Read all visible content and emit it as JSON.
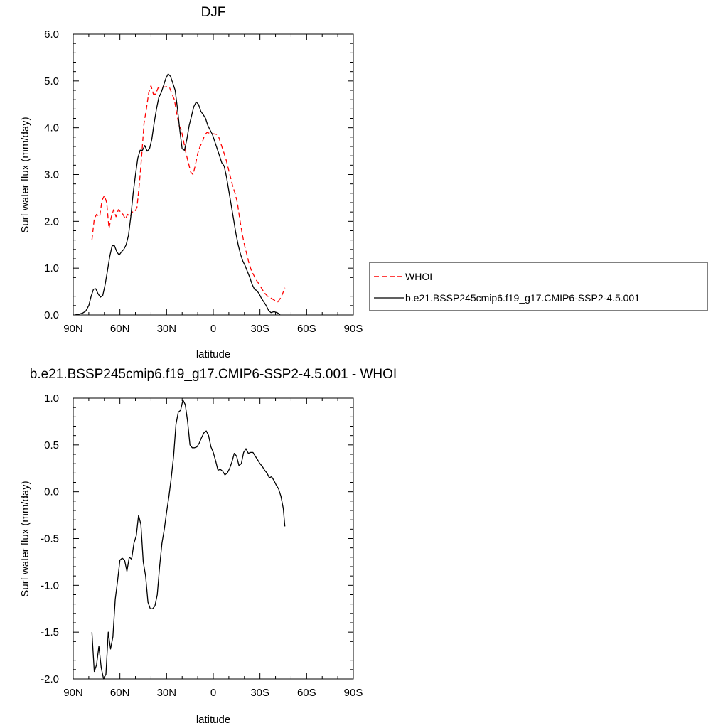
{
  "chart_data": [
    {
      "type": "line",
      "title": "DJF",
      "xlabel": "latitude",
      "ylabel": "Surf water flux (mm/day)",
      "xlim": [
        90,
        -90
      ],
      "ylim": [
        0,
        6
      ],
      "xticks": [
        {
          "v": 90,
          "label": "90N"
        },
        {
          "v": 60,
          "label": "60N"
        },
        {
          "v": 30,
          "label": "30N"
        },
        {
          "v": 0,
          "label": "0"
        },
        {
          "v": -30,
          "label": "30S"
        },
        {
          "v": -60,
          "label": "60S"
        },
        {
          "v": -90,
          "label": "90S"
        }
      ],
      "yticks": [
        {
          "v": 0,
          "label": "0.0"
        },
        {
          "v": 1,
          "label": "1.0"
        },
        {
          "v": 2,
          "label": "2.0"
        },
        {
          "v": 3,
          "label": "3.0"
        },
        {
          "v": 4,
          "label": "4.0"
        },
        {
          "v": 5,
          "label": "5.0"
        },
        {
          "v": 6,
          "label": "6.0"
        }
      ],
      "legend_position": "right",
      "series": [
        {
          "name": "WHOI",
          "color": "#ff0000",
          "dash": true,
          "points": [
            [
              78,
              1.6
            ],
            [
              76.5,
              2.05
            ],
            [
              75,
              2.15
            ],
            [
              73,
              2.1
            ],
            [
              71.5,
              2.45
            ],
            [
              70,
              2.55
            ],
            [
              68.5,
              2.4
            ],
            [
              67,
              1.85
            ],
            [
              65.5,
              2.1
            ],
            [
              64,
              2.25
            ],
            [
              62.5,
              2.1
            ],
            [
              61,
              2.25
            ],
            [
              59.5,
              2.2
            ],
            [
              58,
              2.15
            ],
            [
              56.5,
              2.05
            ],
            [
              55,
              2.15
            ],
            [
              53.5,
              2.1
            ],
            [
              52,
              2.2
            ],
            [
              50.5,
              2.2
            ],
            [
              49,
              2.3
            ],
            [
              47.5,
              2.8
            ],
            [
              46,
              3.4
            ],
            [
              44.5,
              4.1
            ],
            [
              43,
              4.4
            ],
            [
              41.5,
              4.75
            ],
            [
              40,
              4.9
            ],
            [
              38.5,
              4.72
            ],
            [
              37,
              4.72
            ],
            [
              35.5,
              4.85
            ],
            [
              34,
              4.85
            ],
            [
              32.5,
              4.87
            ],
            [
              31,
              4.87
            ],
            [
              29.5,
              4.88
            ],
            [
              28,
              4.85
            ],
            [
              26.5,
              4.72
            ],
            [
              25,
              4.6
            ],
            [
              23.5,
              4.3
            ],
            [
              22,
              4.05
            ],
            [
              20.5,
              3.95
            ],
            [
              19,
              3.7
            ],
            [
              17.5,
              3.45
            ],
            [
              16,
              3.25
            ],
            [
              14.5,
              3.05
            ],
            [
              13,
              3.0
            ],
            [
              11.5,
              3.2
            ],
            [
              10,
              3.45
            ],
            [
              8.5,
              3.6
            ],
            [
              7,
              3.7
            ],
            [
              5.5,
              3.85
            ],
            [
              4,
              3.9
            ],
            [
              2,
              3.88
            ],
            [
              0,
              3.87
            ],
            [
              -2,
              3.86
            ],
            [
              -3.5,
              3.8
            ],
            [
              -5,
              3.65
            ],
            [
              -6.5,
              3.5
            ],
            [
              -8,
              3.35
            ],
            [
              -9.5,
              3.15
            ],
            [
              -11,
              2.95
            ],
            [
              -12.5,
              2.75
            ],
            [
              -14,
              2.6
            ],
            [
              -15.5,
              2.4
            ],
            [
              -17,
              2.05
            ],
            [
              -18.5,
              1.75
            ],
            [
              -20,
              1.5
            ],
            [
              -21.5,
              1.3
            ],
            [
              -23,
              1.1
            ],
            [
              -24.5,
              0.95
            ],
            [
              -26,
              0.85
            ],
            [
              -27.5,
              0.75
            ],
            [
              -29,
              0.68
            ],
            [
              -30.5,
              0.6
            ],
            [
              -32,
              0.52
            ],
            [
              -33.5,
              0.45
            ],
            [
              -35,
              0.4
            ],
            [
              -36.5,
              0.37
            ],
            [
              -38,
              0.34
            ],
            [
              -40,
              0.3
            ],
            [
              -41.5,
              0.28
            ],
            [
              -43,
              0.35
            ],
            [
              -44.5,
              0.45
            ],
            [
              -46,
              0.58
            ]
          ]
        },
        {
          "name": "b.e21.BSSP245cmip6.f19_g17.CMIP6-SSP2-4.5.001",
          "color": "#000000",
          "dash": false,
          "points": [
            [
              88.5,
              0.01
            ],
            [
              86,
              0.02
            ],
            [
              84,
              0.04
            ],
            [
              82,
              0.08
            ],
            [
              80,
              0.2
            ],
            [
              78.5,
              0.4
            ],
            [
              77,
              0.55
            ],
            [
              75.5,
              0.56
            ],
            [
              74,
              0.45
            ],
            [
              72.5,
              0.38
            ],
            [
              71,
              0.42
            ],
            [
              69.5,
              0.65
            ],
            [
              68,
              0.95
            ],
            [
              66.5,
              1.25
            ],
            [
              65,
              1.48
            ],
            [
              63.5,
              1.48
            ],
            [
              62,
              1.35
            ],
            [
              60.5,
              1.28
            ],
            [
              59,
              1.35
            ],
            [
              57.5,
              1.4
            ],
            [
              56,
              1.5
            ],
            [
              54.5,
              1.7
            ],
            [
              53,
              2.1
            ],
            [
              51.5,
              2.6
            ],
            [
              50,
              3.0
            ],
            [
              48.5,
              3.35
            ],
            [
              47,
              3.52
            ],
            [
              45.5,
              3.52
            ],
            [
              44,
              3.62
            ],
            [
              42.5,
              3.5
            ],
            [
              41,
              3.55
            ],
            [
              39.5,
              3.75
            ],
            [
              38,
              4.1
            ],
            [
              36.5,
              4.4
            ],
            [
              35,
              4.65
            ],
            [
              33.5,
              4.75
            ],
            [
              32,
              4.9
            ],
            [
              30.5,
              5.05
            ],
            [
              29,
              5.15
            ],
            [
              27.5,
              5.1
            ],
            [
              26,
              4.95
            ],
            [
              24.5,
              4.8
            ],
            [
              23,
              4.4
            ],
            [
              21.5,
              3.95
            ],
            [
              20,
              3.55
            ],
            [
              18.5,
              3.52
            ],
            [
              17,
              3.75
            ],
            [
              15.5,
              4.05
            ],
            [
              14,
              4.25
            ],
            [
              12.5,
              4.45
            ],
            [
              11,
              4.55
            ],
            [
              9.5,
              4.5
            ],
            [
              8,
              4.35
            ],
            [
              6.5,
              4.28
            ],
            [
              5,
              4.2
            ],
            [
              3.5,
              4.05
            ],
            [
              2,
              3.95
            ],
            [
              0.5,
              3.85
            ],
            [
              -1,
              3.7
            ],
            [
              -2.5,
              3.55
            ],
            [
              -4,
              3.4
            ],
            [
              -5.5,
              3.25
            ],
            [
              -7,
              3.18
            ],
            [
              -8.5,
              2.95
            ],
            [
              -10,
              2.65
            ],
            [
              -11.5,
              2.35
            ],
            [
              -13,
              2.05
            ],
            [
              -14.5,
              1.75
            ],
            [
              -16,
              1.5
            ],
            [
              -17.5,
              1.3
            ],
            [
              -19,
              1.15
            ],
            [
              -20.5,
              1.05
            ],
            [
              -22,
              0.92
            ],
            [
              -23.5,
              0.8
            ],
            [
              -25,
              0.65
            ],
            [
              -26.5,
              0.55
            ],
            [
              -28,
              0.52
            ],
            [
              -29.5,
              0.45
            ],
            [
              -31,
              0.35
            ],
            [
              -32.5,
              0.28
            ],
            [
              -34,
              0.2
            ],
            [
              -35.5,
              0.1
            ],
            [
              -37,
              0.05
            ],
            [
              -39,
              0.07
            ],
            [
              -41,
              0.05
            ],
            [
              -43,
              0.01
            ]
          ]
        }
      ]
    },
    {
      "type": "line",
      "title": "b.e21.BSSP245cmip6.f19_g17.CMIP6-SSP2-4.5.001 - WHOI",
      "xlabel": "latitude",
      "ylabel": "Surf water flux (mm/day)",
      "xlim": [
        90,
        -90
      ],
      "ylim": [
        -2,
        1
      ],
      "xticks": [
        {
          "v": 90,
          "label": "90N"
        },
        {
          "v": 60,
          "label": "60N"
        },
        {
          "v": 30,
          "label": "30N"
        },
        {
          "v": 0,
          "label": "0"
        },
        {
          "v": -30,
          "label": "30S"
        },
        {
          "v": -60,
          "label": "60S"
        },
        {
          "v": -90,
          "label": "90S"
        }
      ],
      "yticks": [
        {
          "v": 1,
          "label": "1.0"
        },
        {
          "v": 0.5,
          "label": "0.5"
        },
        {
          "v": 0,
          "label": "0.0"
        },
        {
          "v": -0.5,
          "label": "-0.5"
        },
        {
          "v": -1,
          "label": "-1.0"
        },
        {
          "v": -1.5,
          "label": "-1.5"
        },
        {
          "v": -2,
          "label": "-2.0"
        }
      ],
      "series": [
        {
          "color": "#000000",
          "dash": false,
          "points": [
            [
              78,
              -1.5
            ],
            [
              76.5,
              -1.92
            ],
            [
              75,
              -1.85
            ],
            [
              73.5,
              -1.65
            ],
            [
              72,
              -1.88
            ],
            [
              70.5,
              -2.0
            ],
            [
              69,
              -1.95
            ],
            [
              67.5,
              -1.5
            ],
            [
              66,
              -1.68
            ],
            [
              64.5,
              -1.55
            ],
            [
              63,
              -1.15
            ],
            [
              61.5,
              -0.95
            ],
            [
              60,
              -0.73
            ],
            [
              58.5,
              -0.71
            ],
            [
              57,
              -0.73
            ],
            [
              55.5,
              -0.85
            ],
            [
              54,
              -0.7
            ],
            [
              52.5,
              -0.72
            ],
            [
              51,
              -0.55
            ],
            [
              49.5,
              -0.47
            ],
            [
              48,
              -0.25
            ],
            [
              46.5,
              -0.35
            ],
            [
              45,
              -0.75
            ],
            [
              43.5,
              -0.9
            ],
            [
              42,
              -1.18
            ],
            [
              40.5,
              -1.25
            ],
            [
              39,
              -1.25
            ],
            [
              37.5,
              -1.22
            ],
            [
              36,
              -1.1
            ],
            [
              34.5,
              -0.8
            ],
            [
              33,
              -0.55
            ],
            [
              31.5,
              -0.4
            ],
            [
              30,
              -0.22
            ],
            [
              28.5,
              -0.05
            ],
            [
              27,
              0.15
            ],
            [
              25.5,
              0.38
            ],
            [
              24,
              0.72
            ],
            [
              22.5,
              0.85
            ],
            [
              21,
              0.87
            ],
            [
              19.5,
              0.98
            ],
            [
              18,
              0.93
            ],
            [
              16.5,
              0.75
            ],
            [
              15,
              0.5
            ],
            [
              13.5,
              0.47
            ],
            [
              12,
              0.47
            ],
            [
              10.5,
              0.48
            ],
            [
              9,
              0.52
            ],
            [
              7.5,
              0.58
            ],
            [
              6,
              0.63
            ],
            [
              4.5,
              0.65
            ],
            [
              3,
              0.6
            ],
            [
              1.5,
              0.48
            ],
            [
              0,
              0.42
            ],
            [
              -1.5,
              0.33
            ],
            [
              -3,
              0.23
            ],
            [
              -4.5,
              0.24
            ],
            [
              -6,
              0.22
            ],
            [
              -7.5,
              0.18
            ],
            [
              -9,
              0.2
            ],
            [
              -10.5,
              0.25
            ],
            [
              -12,
              0.32
            ],
            [
              -13.5,
              0.41
            ],
            [
              -15,
              0.38
            ],
            [
              -16.5,
              0.28
            ],
            [
              -18,
              0.3
            ],
            [
              -19.5,
              0.42
            ],
            [
              -21,
              0.46
            ],
            [
              -22.5,
              0.41
            ],
            [
              -24,
              0.42
            ],
            [
              -25.5,
              0.42
            ],
            [
              -27,
              0.38
            ],
            [
              -28.5,
              0.34
            ],
            [
              -30,
              0.3
            ],
            [
              -31.5,
              0.27
            ],
            [
              -33,
              0.23
            ],
            [
              -34.5,
              0.2
            ],
            [
              -36,
              0.15
            ],
            [
              -37.5,
              0.16
            ],
            [
              -39,
              0.12
            ],
            [
              -40.5,
              0.07
            ],
            [
              -42,
              0.03
            ],
            [
              -43.5,
              -0.05
            ],
            [
              -45,
              -0.18
            ],
            [
              -46,
              -0.37
            ]
          ]
        }
      ]
    }
  ]
}
